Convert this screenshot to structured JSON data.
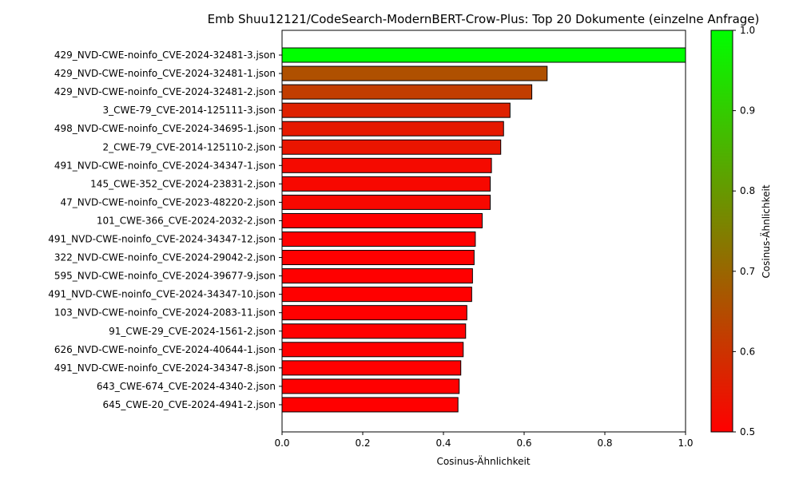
{
  "chart_data": {
    "type": "bar",
    "orientation": "horizontal",
    "title": "Emb Shuu12121/CodeSearch-ModernBERT-Crow-Plus: Top 20 Dokumente (einzelne Anfrage)",
    "xlabel": "Cosinus-Ähnlichkeit",
    "ylabel": "",
    "xlim": [
      0.0,
      1.0
    ],
    "xticks": [
      "0.0",
      "0.2",
      "0.4",
      "0.6",
      "0.8",
      "1.0"
    ],
    "grid": false,
    "categories": [
      "429_NVD-CWE-noinfo_CVE-2024-32481-3.json",
      "429_NVD-CWE-noinfo_CVE-2024-32481-1.json",
      "429_NVD-CWE-noinfo_CVE-2024-32481-2.json",
      "3_CWE-79_CVE-2014-125111-3.json",
      "498_NVD-CWE-noinfo_CVE-2024-34695-1.json",
      "2_CWE-79_CVE-2014-125110-2.json",
      "491_NVD-CWE-noinfo_CVE-2024-34347-1.json",
      "145_CWE-352_CVE-2024-23831-2.json",
      "47_NVD-CWE-noinfo_CVE-2023-48220-2.json",
      "101_CWE-366_CVE-2024-2032-2.json",
      "491_NVD-CWE-noinfo_CVE-2024-34347-12.json",
      "322_NVD-CWE-noinfo_CVE-2024-29042-2.json",
      "595_NVD-CWE-noinfo_CVE-2024-39677-9.json",
      "491_NVD-CWE-noinfo_CVE-2024-34347-10.json",
      "103_NVD-CWE-noinfo_CVE-2024-2083-11.json",
      "91_CWE-29_CVE-2024-1561-2.json",
      "626_NVD-CWE-noinfo_CVE-2024-40644-1.json",
      "491_NVD-CWE-noinfo_CVE-2024-34347-8.json",
      "643_CWE-674_CVE-2024-4340-2.json",
      "645_CWE-20_CVE-2024-4941-2.json"
    ],
    "values": [
      1.0,
      0.657,
      0.619,
      0.565,
      0.549,
      0.542,
      0.519,
      0.516,
      0.516,
      0.496,
      0.479,
      0.476,
      0.472,
      0.47,
      0.458,
      0.455,
      0.449,
      0.443,
      0.439,
      0.436
    ],
    "colorbar": {
      "label": "Cosinus-Ähnlichkeit",
      "range": [
        0.5,
        1.0
      ],
      "ticks": [
        "0.5",
        "0.6",
        "0.7",
        "0.8",
        "0.9",
        "1.0"
      ],
      "color_low": "#ff0000",
      "color_high": "#00ff00"
    },
    "bar_edge_color": "#000000"
  }
}
